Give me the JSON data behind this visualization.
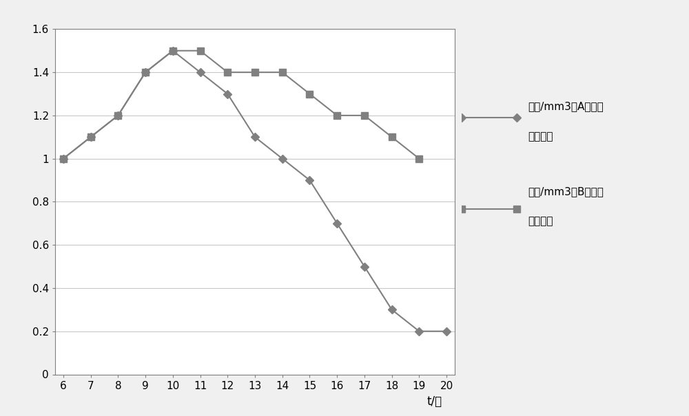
{
  "series_A_x": [
    6,
    7,
    8,
    9,
    10,
    11,
    12,
    13,
    14,
    15,
    16,
    17,
    18,
    19,
    20
  ],
  "series_A_y": [
    1.0,
    1.1,
    1.2,
    1.4,
    1.5,
    1.4,
    1.3,
    1.1,
    1.0,
    0.9,
    0.7,
    0.5,
    0.3,
    0.2,
    0.2
  ],
  "series_B_x": [
    6,
    7,
    8,
    9,
    10,
    11,
    12,
    13,
    14,
    15,
    16,
    17,
    18,
    19
  ],
  "series_B_y": [
    1.0,
    1.1,
    1.2,
    1.4,
    1.5,
    1.5,
    1.4,
    1.4,
    1.4,
    1.3,
    1.2,
    1.2,
    1.1,
    1.0
  ],
  "line_color": "#808080",
  "background_color": "#f0f0f0",
  "plot_bg_color": "#ffffff",
  "xlim": [
    6,
    20
  ],
  "ylim": [
    0,
    1.6
  ],
  "xticks": [
    6,
    7,
    8,
    9,
    10,
    11,
    12,
    13,
    14,
    15,
    16,
    17,
    18,
    19,
    20
  ],
  "yticks": [
    0,
    0.2,
    0.4,
    0.6,
    0.8,
    1.0,
    1.2,
    1.4,
    1.6
  ],
  "xlabel": "t/天",
  "legend_A_line1": "个数/mm3（A组）单",
  "legend_A_line2": "位：十万",
  "legend_B_line1": "个数/mm3（B组）单",
  "legend_B_line2": "位：十万",
  "grid_color": "#c8c8c8",
  "spine_color": "#808080",
  "tick_fontsize": 11,
  "legend_fontsize": 11
}
